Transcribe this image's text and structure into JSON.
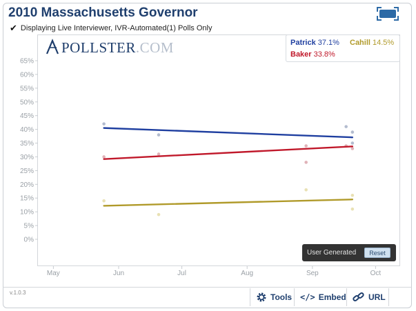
{
  "header": {
    "title": "2010 Massachusetts Governor",
    "subtitle": "Displaying Live Interviewer, IVR-Automated(1) Polls Only"
  },
  "logo": {
    "name": "POLLSTER",
    "suffix": ".COM"
  },
  "legend": [
    {
      "name": "Patrick",
      "value": "37.1%",
      "color": "#1f3fa0"
    },
    {
      "name": "Cahill",
      "value": "14.5%",
      "color": "#b09a2a"
    },
    {
      "name": "Baker",
      "value": "33.8%",
      "color": "#c0182a"
    }
  ],
  "controls": {
    "user_generated_label": "User Generated",
    "reset_label": "Reset",
    "version": "v.1.0.3",
    "tools_label": "Tools",
    "embed_label": "Embed",
    "url_label": "URL"
  },
  "chart_data": {
    "type": "line",
    "title": "2010 Massachusetts Governor",
    "xlabel": "",
    "ylabel": "",
    "x_ticks": [
      "May",
      "Jun",
      "Jul",
      "Aug",
      "Sep",
      "Oct"
    ],
    "y_ticks": [
      "0%",
      "5%",
      "10%",
      "15%",
      "20%",
      "25%",
      "30%",
      "35%",
      "40%",
      "45%",
      "50%",
      "55%",
      "60%",
      "65%"
    ],
    "ylim": [
      0,
      65
    ],
    "xlim": [
      "2010-04-24",
      "2010-10-12"
    ],
    "grid": false,
    "series": [
      {
        "name": "Patrick",
        "color": "#1f3fa0",
        "trend": [
          {
            "x": "2010-05-25",
            "y": 40.5
          },
          {
            "x": "2010-09-20",
            "y": 37.1
          }
        ],
        "points": [
          {
            "x": "2010-05-25",
            "y": 42
          },
          {
            "x": "2010-06-20",
            "y": 38
          },
          {
            "x": "2010-09-17",
            "y": 41
          },
          {
            "x": "2010-09-20",
            "y": 39
          },
          {
            "x": "2010-09-20",
            "y": 35
          }
        ]
      },
      {
        "name": "Baker",
        "color": "#c0182a",
        "trend": [
          {
            "x": "2010-05-25",
            "y": 29.2
          },
          {
            "x": "2010-09-20",
            "y": 33.8
          }
        ],
        "points": [
          {
            "x": "2010-05-25",
            "y": 30
          },
          {
            "x": "2010-06-20",
            "y": 31
          },
          {
            "x": "2010-08-29",
            "y": 28
          },
          {
            "x": "2010-08-29",
            "y": 34
          },
          {
            "x": "2010-09-17",
            "y": 34
          },
          {
            "x": "2010-09-20",
            "y": 33
          }
        ]
      },
      {
        "name": "Cahill",
        "color": "#b09a2a",
        "trend": [
          {
            "x": "2010-05-25",
            "y": 12.2
          },
          {
            "x": "2010-09-20",
            "y": 14.5
          }
        ],
        "points": [
          {
            "x": "2010-05-25",
            "y": 14
          },
          {
            "x": "2010-06-20",
            "y": 9
          },
          {
            "x": "2010-08-29",
            "y": 18
          },
          {
            "x": "2010-09-20",
            "y": 16
          },
          {
            "x": "2010-09-20",
            "y": 11
          }
        ]
      }
    ]
  }
}
